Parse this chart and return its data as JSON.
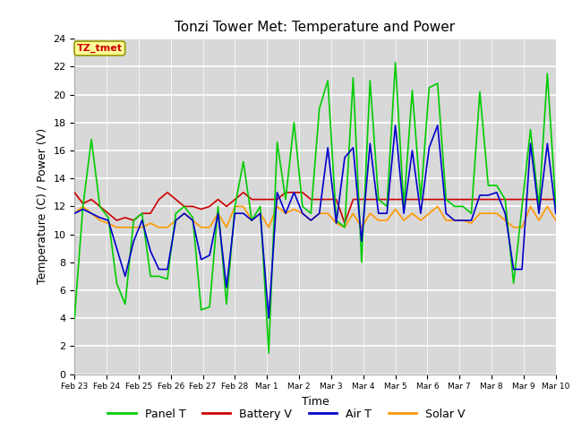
{
  "title": "Tonzi Tower Met: Temperature and Power",
  "xlabel": "Time",
  "ylabel": "Temperature (C) / Power (V)",
  "ylim": [
    0,
    24
  ],
  "yticks": [
    0,
    2,
    4,
    6,
    8,
    10,
    12,
    14,
    16,
    18,
    20,
    22,
    24
  ],
  "annotation_text": "TZ_tmet",
  "annotation_color": "#cc0000",
  "annotation_bg": "#ffff99",
  "annotation_border": "#999900",
  "colors": {
    "Panel T": "#00cc00",
    "Battery V": "#cc0000",
    "Air T": "#0000cc",
    "Solar V": "#ff9900"
  },
  "background_color": "#d8d8d8",
  "fig_bg": "#ffffff",
  "xtick_labels": [
    "Feb 23",
    "Feb 24",
    "Feb 25",
    "Feb 26",
    "Feb 27",
    "Feb 28",
    "Mar 1",
    "Mar 2",
    "Mar 3",
    "Mar 4",
    "Mar 5",
    "Mar 6",
    "Mar 7",
    "Mar 8",
    "Mar 9",
    "Mar 10"
  ],
  "panel_t": [
    4.0,
    12.0,
    16.8,
    12.0,
    11.2,
    6.5,
    5.0,
    11.0,
    11.5,
    7.0,
    7.0,
    6.8,
    11.5,
    12.0,
    11.2,
    4.6,
    4.8,
    12.0,
    5.0,
    12.0,
    15.2,
    11.0,
    12.0,
    1.5,
    16.6,
    12.5,
    18.0,
    12.0,
    11.5,
    19.0,
    21.0,
    11.0,
    10.5,
    21.2,
    8.0,
    21.0,
    12.5,
    12.0,
    22.3,
    12.0,
    20.3,
    12.5,
    20.5,
    20.8,
    12.5,
    12.0,
    12.0,
    11.5,
    20.2,
    13.5,
    13.5,
    12.5,
    6.5,
    12.0,
    17.5,
    12.0,
    21.5,
    12.0
  ],
  "battery_v": [
    13.0,
    12.2,
    12.5,
    12.0,
    11.5,
    11.0,
    11.2,
    11.0,
    11.5,
    11.5,
    12.5,
    13.0,
    12.5,
    12.0,
    12.0,
    11.8,
    12.0,
    12.5,
    12.0,
    12.5,
    13.0,
    12.5,
    12.5,
    12.5,
    12.5,
    13.0,
    13.0,
    13.0,
    12.5,
    12.5,
    12.5,
    12.5,
    10.8,
    12.5,
    12.5,
    12.5,
    12.5,
    12.5,
    12.5,
    12.5,
    12.5,
    12.5,
    12.5,
    12.5,
    12.5,
    12.5,
    12.5,
    12.5,
    12.5,
    12.5,
    12.5,
    12.5,
    12.5,
    12.5,
    12.5,
    12.5,
    12.5,
    12.5
  ],
  "air_t": [
    11.5,
    11.8,
    11.5,
    11.2,
    11.0,
    9.0,
    7.0,
    9.5,
    11.0,
    8.8,
    7.5,
    7.5,
    11.0,
    11.5,
    11.0,
    8.2,
    8.5,
    11.5,
    6.2,
    11.5,
    11.5,
    11.0,
    11.5,
    4.0,
    13.0,
    11.5,
    13.0,
    11.5,
    11.0,
    11.5,
    16.2,
    10.8,
    15.5,
    16.2,
    9.5,
    16.5,
    11.5,
    11.5,
    17.8,
    11.5,
    16.0,
    11.5,
    16.2,
    17.8,
    11.5,
    11.0,
    11.0,
    11.0,
    12.8,
    12.8,
    13.0,
    11.5,
    7.5,
    7.5,
    16.5,
    11.5,
    16.5,
    11.5
  ],
  "solar_v": [
    11.5,
    12.0,
    11.5,
    11.0,
    10.8,
    10.5,
    10.5,
    10.5,
    10.5,
    10.8,
    10.5,
    10.5,
    11.0,
    11.5,
    11.0,
    10.5,
    10.5,
    11.5,
    10.5,
    12.0,
    12.0,
    11.0,
    11.5,
    10.5,
    12.0,
    11.5,
    11.8,
    11.5,
    11.0,
    11.5,
    11.5,
    10.8,
    10.5,
    11.5,
    10.5,
    11.5,
    11.0,
    11.0,
    11.8,
    11.0,
    11.5,
    11.0,
    11.5,
    12.0,
    11.0,
    11.0,
    11.0,
    10.8,
    11.5,
    11.5,
    11.5,
    11.0,
    10.5,
    10.5,
    12.0,
    11.0,
    12.0,
    11.0
  ]
}
